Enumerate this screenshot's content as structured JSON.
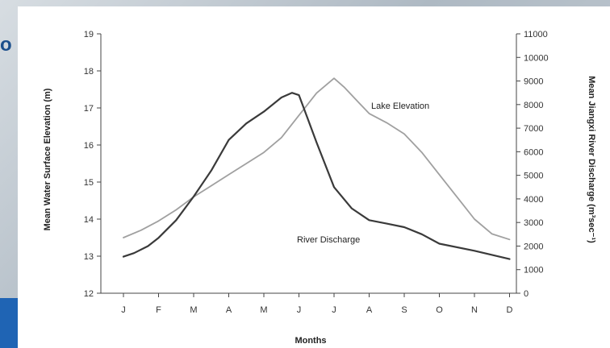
{
  "slide": {
    "fragment_text": "o"
  },
  "chart_data": {
    "type": "line",
    "title": "",
    "xlabel": "Months",
    "ylabel": "Mean Water Surface Elevation (m)",
    "y2label": "Mean Jiangxi River Discharge (m³sec⁻¹)",
    "categories": [
      "J",
      "F",
      "M",
      "A",
      "M",
      "J",
      "J",
      "A",
      "S",
      "O",
      "N",
      "D"
    ],
    "ylim": [
      12,
      19
    ],
    "yticks": [
      "12",
      "13",
      "14",
      "15",
      "16",
      "17",
      "18",
      "19"
    ],
    "y2lim": [
      0,
      11000
    ],
    "y2ticks": [
      "0",
      "1000",
      "2000",
      "3000",
      "4000",
      "5000",
      "6000",
      "7000",
      "8000",
      "9000",
      "10000",
      "11000"
    ],
    "grid": false,
    "series": [
      {
        "name": "Lake Elevation",
        "axis": "left",
        "color": "#a0a0a0",
        "x": [
          1,
          1.5,
          2,
          2.5,
          3,
          3.5,
          4,
          4.5,
          5,
          5.5,
          6,
          6.5,
          7,
          7.3,
          7.7,
          8,
          8.5,
          9,
          9.5,
          10,
          10.5,
          11,
          11.5,
          12
        ],
        "values": [
          13.5,
          13.7,
          13.95,
          14.25,
          14.6,
          14.9,
          15.2,
          15.5,
          15.8,
          16.2,
          16.8,
          17.4,
          17.8,
          17.55,
          17.15,
          16.85,
          16.6,
          16.3,
          15.8,
          15.2,
          14.6,
          14.0,
          13.6,
          13.45
        ]
      },
      {
        "name": "River Discharge",
        "axis": "right",
        "color": "#3a3a3a",
        "x": [
          1,
          1.3,
          1.7,
          2,
          2.5,
          3,
          3.5,
          4,
          4.5,
          5,
          5.5,
          5.8,
          6,
          6.2,
          6.5,
          7,
          7.5,
          8,
          8.5,
          9,
          9.5,
          10,
          11,
          12
        ],
        "values": [
          1550,
          1700,
          2000,
          2350,
          3100,
          4100,
          5200,
          6500,
          7200,
          7700,
          8300,
          8500,
          8400,
          7600,
          6400,
          4500,
          3600,
          3100,
          2950,
          2800,
          2500,
          2100,
          1800,
          1450
        ]
      }
    ],
    "annotations": [
      "Lake Elevation",
      "River Discharge"
    ]
  }
}
